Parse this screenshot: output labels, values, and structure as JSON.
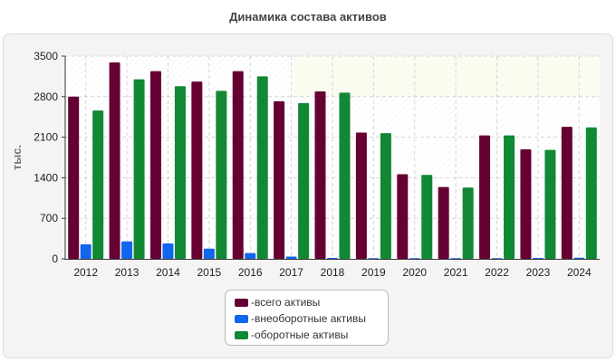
{
  "chart_data": {
    "type": "bar",
    "title": "Динамика состава активов",
    "ylabel": "тыс.",
    "xlabel": "",
    "ylim": [
      0,
      3500
    ],
    "yticks": [
      "0",
      "700",
      "1400",
      "2100",
      "2800",
      "3500"
    ],
    "categories": [
      "2012",
      "2013",
      "2014",
      "2015",
      "2016",
      "2017",
      "2018",
      "2019",
      "2020",
      "2021",
      "2022",
      "2023",
      "2024"
    ],
    "series": [
      {
        "name": "всего активы",
        "color": "#660033",
        "values": [
          2800,
          3390,
          3240,
          3060,
          3240,
          2720,
          2890,
          2180,
          1460,
          1240,
          2130,
          1890,
          2280
        ]
      },
      {
        "name": "внеоборотные активы",
        "color": "#1166ee",
        "values": [
          250,
          300,
          265,
          175,
          100,
          40,
          15,
          10,
          5,
          5,
          10,
          15,
          20
        ]
      },
      {
        "name": "оборотные активы",
        "color": "#118833",
        "values": [
          2560,
          3100,
          2980,
          2900,
          3150,
          2690,
          2870,
          2170,
          1450,
          1230,
          2130,
          1880,
          2270
        ]
      }
    ],
    "grid": true,
    "legend_position": "bottom-center"
  },
  "legend_prefix": "- "
}
